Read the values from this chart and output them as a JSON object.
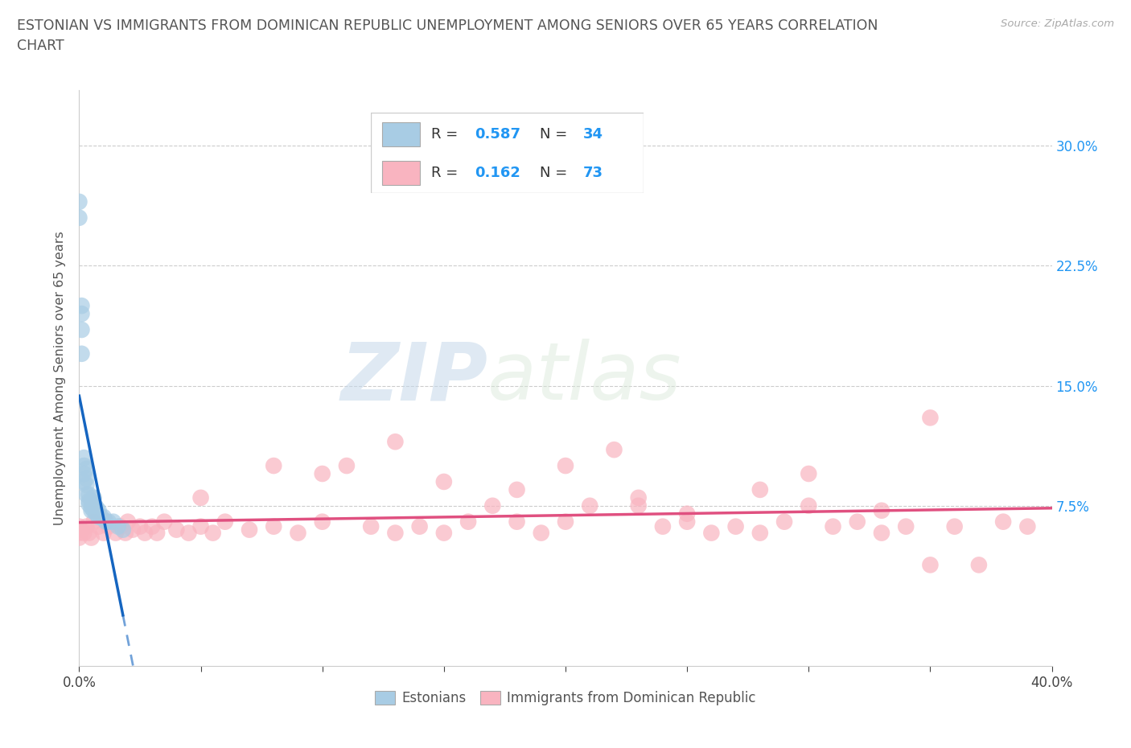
{
  "title_line1": "ESTONIAN VS IMMIGRANTS FROM DOMINICAN REPUBLIC UNEMPLOYMENT AMONG SENIORS OVER 65 YEARS CORRELATION",
  "title_line2": "CHART",
  "source": "Source: ZipAtlas.com",
  "ylabel": "Unemployment Among Seniors over 65 years",
  "ytick_vals": [
    0.075,
    0.15,
    0.225,
    0.3
  ],
  "ytick_labels": [
    "7.5%",
    "15.0%",
    "22.5%",
    "30.0%"
  ],
  "xlim": [
    0.0,
    0.4
  ],
  "ylim": [
    -0.025,
    0.335
  ],
  "color_estonian": "#a8cce4",
  "color_dominican": "#f9b4c0",
  "color_trendline_estonian": "#1565C0",
  "color_trendline_dominican": "#e05080",
  "watermark_zip": "ZIP",
  "watermark_atlas": "atlas",
  "legend_r1_label": "R = 0.587",
  "legend_r1_n": "N = 34",
  "legend_r2_label": "R = 0.162",
  "legend_r2_n": "N = 73",
  "est_x": [
    0.0,
    0.0,
    0.001,
    0.001,
    0.001,
    0.001,
    0.002,
    0.002,
    0.002,
    0.002,
    0.003,
    0.003,
    0.003,
    0.003,
    0.004,
    0.004,
    0.004,
    0.005,
    0.005,
    0.005,
    0.006,
    0.006,
    0.006,
    0.007,
    0.007,
    0.008,
    0.008,
    0.009,
    0.01,
    0.011,
    0.012,
    0.014,
    0.016,
    0.018
  ],
  "est_y": [
    0.265,
    0.255,
    0.2,
    0.195,
    0.185,
    0.17,
    0.095,
    0.09,
    0.1,
    0.105,
    0.082,
    0.088,
    0.092,
    0.098,
    0.078,
    0.082,
    0.076,
    0.074,
    0.078,
    0.072,
    0.072,
    0.076,
    0.08,
    0.07,
    0.074,
    0.068,
    0.072,
    0.068,
    0.068,
    0.065,
    0.065,
    0.065,
    0.062,
    0.06
  ],
  "dom_x": [
    0.0,
    0.0,
    0.0,
    0.001,
    0.002,
    0.003,
    0.004,
    0.005,
    0.006,
    0.008,
    0.01,
    0.012,
    0.015,
    0.017,
    0.019,
    0.02,
    0.022,
    0.025,
    0.027,
    0.03,
    0.032,
    0.035,
    0.04,
    0.045,
    0.05,
    0.055,
    0.06,
    0.07,
    0.08,
    0.09,
    0.1,
    0.11,
    0.12,
    0.13,
    0.14,
    0.15,
    0.16,
    0.17,
    0.18,
    0.19,
    0.2,
    0.21,
    0.22,
    0.23,
    0.24,
    0.25,
    0.26,
    0.27,
    0.28,
    0.29,
    0.3,
    0.31,
    0.32,
    0.33,
    0.34,
    0.35,
    0.36,
    0.37,
    0.38,
    0.39,
    0.1,
    0.15,
    0.2,
    0.25,
    0.3,
    0.35,
    0.05,
    0.08,
    0.13,
    0.18,
    0.23,
    0.28,
    0.33
  ],
  "dom_y": [
    0.058,
    0.062,
    0.055,
    0.06,
    0.058,
    0.062,
    0.058,
    0.055,
    0.065,
    0.062,
    0.058,
    0.062,
    0.058,
    0.062,
    0.058,
    0.065,
    0.06,
    0.062,
    0.058,
    0.062,
    0.058,
    0.065,
    0.06,
    0.058,
    0.062,
    0.058,
    0.065,
    0.06,
    0.062,
    0.058,
    0.065,
    0.1,
    0.062,
    0.058,
    0.062,
    0.058,
    0.065,
    0.075,
    0.065,
    0.058,
    0.065,
    0.075,
    0.11,
    0.08,
    0.062,
    0.065,
    0.058,
    0.062,
    0.058,
    0.065,
    0.075,
    0.062,
    0.065,
    0.058,
    0.062,
    0.038,
    0.062,
    0.038,
    0.065,
    0.062,
    0.095,
    0.09,
    0.1,
    0.07,
    0.095,
    0.13,
    0.08,
    0.1,
    0.115,
    0.085,
    0.075,
    0.085,
    0.072
  ]
}
